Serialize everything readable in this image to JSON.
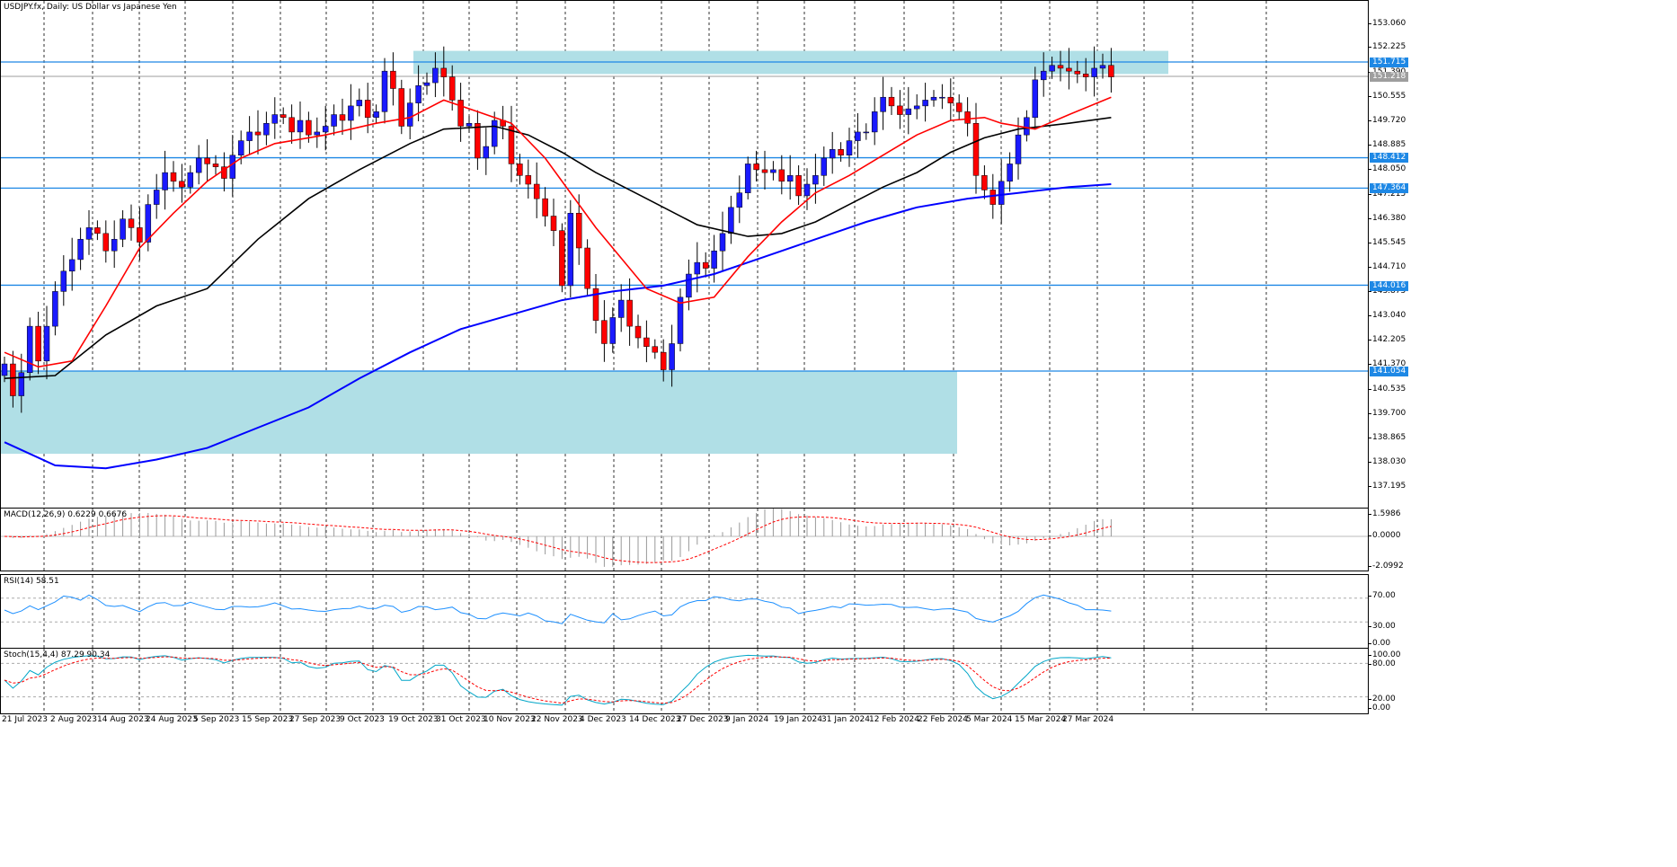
{
  "header": {
    "symbol_title": "USDJPY.fx, Daily:  US Dollar vs Japanese Yen"
  },
  "price_pane": {
    "axis_ticks": [
      "153.060",
      "152.225",
      "151.390",
      "150.555",
      "149.720",
      "148.885",
      "148.050",
      "147.215",
      "146.380",
      "145.545",
      "144.710",
      "143.875",
      "143.040",
      "142.205",
      "141.370",
      "140.535",
      "139.700",
      "138.865",
      "138.030",
      "137.195"
    ],
    "levels": [
      {
        "label": "151.715",
        "value": 151.715,
        "color": "#1e88e5"
      },
      {
        "label": "148.412",
        "value": 148.412,
        "color": "#1e88e5"
      },
      {
        "label": "147.364",
        "value": 147.364,
        "color": "#1e88e5"
      },
      {
        "label": "144.016",
        "value": 144.016,
        "color": "#1e88e5"
      },
      {
        "label": "141.054",
        "value": 141.054,
        "color": "#1e88e5"
      }
    ],
    "current_price": {
      "label": "151.218",
      "value": 151.218
    }
  },
  "macd_pane": {
    "title": "MACD(12,26,9) 0.6229 0.6676",
    "axis_ticks": [
      "1.5986",
      "0.0000",
      "-2.0992"
    ]
  },
  "rsi_pane": {
    "title": "RSI(14) 58.51",
    "axis_ticks": [
      "70.00",
      "30.00",
      "0.00"
    ]
  },
  "stoch_pane": {
    "title": "Stoch(15,4,4) 87.29 90.34",
    "axis_ticks": [
      "100.00",
      "80.00",
      "20.00",
      "0.00"
    ]
  },
  "time_axis": [
    "21 Jul 2023",
    "2 Aug 2023",
    "14 Aug 2023",
    "24 Aug 2023",
    "5 Sep 2023",
    "15 Sep 2023",
    "27 Sep 2023",
    "9 Oct 2023",
    "19 Oct 2023",
    "31 Oct 2023",
    "10 Nov 2023",
    "22 Nov 2023",
    "4 Dec 2023",
    "14 Dec 2023",
    "27 Dec 2023",
    "9 Jan 2024",
    "19 Jan 2024",
    "31 Jan 2024",
    "12 Feb 2024",
    "22 Feb 2024",
    "5 Mar 2024",
    "15 Mar 2024",
    "27 Mar 2024"
  ],
  "colors": {
    "bull": "#1a1aff",
    "bear": "#ff0000",
    "zone": "#b0dfe6",
    "level": "#1e88e5",
    "ma_fast": "#ff0000",
    "ma_mid": "#000000",
    "ma_slow": "#0000ff"
  },
  "chart_data": {
    "type": "candlestick",
    "title": "USDJPY.fx, Daily:  US Dollar vs Japanese Yen",
    "ylim": [
      136.7,
      153.6
    ],
    "zones": [
      {
        "from_date": "19 Oct 2023",
        "to_date": "after 27 Mar 2024",
        "low": 151.3,
        "high": 152.1
      },
      {
        "from_date": "21 Jul 2023",
        "to_date": "5 Mar 2024",
        "low": 138.2,
        "high": 141.054
      }
    ],
    "close_path": [
      141.3,
      140.2,
      141.0,
      142.6,
      141.4,
      142.6,
      143.8,
      144.5,
      144.9,
      145.6,
      146.0,
      145.8,
      145.2,
      145.6,
      146.3,
      146.0,
      145.5,
      146.8,
      147.3,
      147.9,
      147.6,
      147.4,
      147.9,
      148.4,
      148.2,
      148.1,
      147.7,
      148.5,
      149.0,
      149.3,
      149.2,
      149.6,
      149.9,
      149.8,
      149.3,
      149.7,
      149.2,
      149.3,
      149.5,
      149.9,
      149.7,
      150.2,
      150.4,
      149.8,
      150.0,
      151.4,
      150.8,
      149.5,
      150.3,
      150.9,
      151.0,
      151.5,
      151.2,
      150.4,
      149.5,
      149.6,
      148.4,
      148.8,
      149.7,
      149.5,
      148.2,
      147.8,
      147.5,
      147.0,
      146.4,
      145.9,
      144.0,
      146.5,
      145.3,
      143.9,
      142.8,
      142.0,
      142.9,
      143.5,
      142.6,
      142.2,
      141.9,
      141.7,
      141.1,
      142.0,
      143.6,
      144.4,
      144.8,
      144.6,
      145.2,
      145.8,
      146.7,
      147.2,
      148.2,
      148.0,
      147.9,
      148.0,
      147.6,
      147.8,
      147.1,
      147.5,
      147.8,
      148.4,
      148.7,
      148.5,
      149.0,
      149.3,
      149.3,
      150.0,
      150.5,
      150.2,
      149.9,
      150.1,
      150.2,
      150.4,
      150.5,
      150.5,
      150.3,
      150.0,
      149.6,
      147.8,
      147.3,
      146.8,
      147.6,
      148.2,
      149.2,
      149.8,
      151.1,
      151.4,
      151.6,
      151.5,
      151.4,
      151.3,
      151.2,
      151.5,
      151.6,
      151.2
    ],
    "ma_fast_path": [
      [
        0,
        141.7
      ],
      [
        4,
        141.2
      ],
      [
        8,
        141.4
      ],
      [
        12,
        143.3
      ],
      [
        16,
        145.3
      ],
      [
        20,
        146.5
      ],
      [
        24,
        147.6
      ],
      [
        28,
        148.4
      ],
      [
        32,
        148.9
      ],
      [
        38,
        149.2
      ],
      [
        44,
        149.6
      ],
      [
        48,
        149.8
      ],
      [
        52,
        150.4
      ],
      [
        56,
        150.0
      ],
      [
        60,
        149.6
      ],
      [
        64,
        148.4
      ],
      [
        70,
        146.0
      ],
      [
        76,
        143.9
      ],
      [
        80,
        143.4
      ],
      [
        84,
        143.6
      ],
      [
        88,
        145.0
      ],
      [
        92,
        146.2
      ],
      [
        96,
        147.2
      ],
      [
        100,
        147.8
      ],
      [
        104,
        148.5
      ],
      [
        108,
        149.2
      ],
      [
        112,
        149.7
      ],
      [
        116,
        149.8
      ],
      [
        118,
        149.6
      ],
      [
        122,
        149.4
      ],
      [
        126,
        149.9
      ],
      [
        131,
        150.5
      ]
    ],
    "ma_mid_path": [
      [
        0,
        140.8
      ],
      [
        6,
        140.9
      ],
      [
        12,
        142.3
      ],
      [
        18,
        143.3
      ],
      [
        24,
        143.9
      ],
      [
        30,
        145.6
      ],
      [
        36,
        147.0
      ],
      [
        42,
        148.0
      ],
      [
        48,
        148.9
      ],
      [
        52,
        149.4
      ],
      [
        58,
        149.5
      ],
      [
        62,
        149.2
      ],
      [
        66,
        148.6
      ],
      [
        70,
        147.9
      ],
      [
        76,
        147.0
      ],
      [
        82,
        146.1
      ],
      [
        88,
        145.7
      ],
      [
        92,
        145.8
      ],
      [
        96,
        146.2
      ],
      [
        100,
        146.8
      ],
      [
        104,
        147.4
      ],
      [
        108,
        147.9
      ],
      [
        112,
        148.6
      ],
      [
        116,
        149.1
      ],
      [
        120,
        149.4
      ],
      [
        126,
        149.6
      ],
      [
        131,
        149.8
      ]
    ],
    "ma_slow_path": [
      [
        0,
        138.6
      ],
      [
        6,
        137.8
      ],
      [
        12,
        137.7
      ],
      [
        18,
        138.0
      ],
      [
        24,
        138.4
      ],
      [
        30,
        139.1
      ],
      [
        36,
        139.8
      ],
      [
        42,
        140.8
      ],
      [
        48,
        141.7
      ],
      [
        54,
        142.5
      ],
      [
        60,
        143.0
      ],
      [
        66,
        143.5
      ],
      [
        72,
        143.8
      ],
      [
        78,
        144.0
      ],
      [
        84,
        144.4
      ],
      [
        90,
        145.0
      ],
      [
        96,
        145.6
      ],
      [
        102,
        146.2
      ],
      [
        108,
        146.7
      ],
      [
        114,
        147.0
      ],
      [
        120,
        147.2
      ],
      [
        126,
        147.4
      ],
      [
        131,
        147.5
      ]
    ]
  }
}
